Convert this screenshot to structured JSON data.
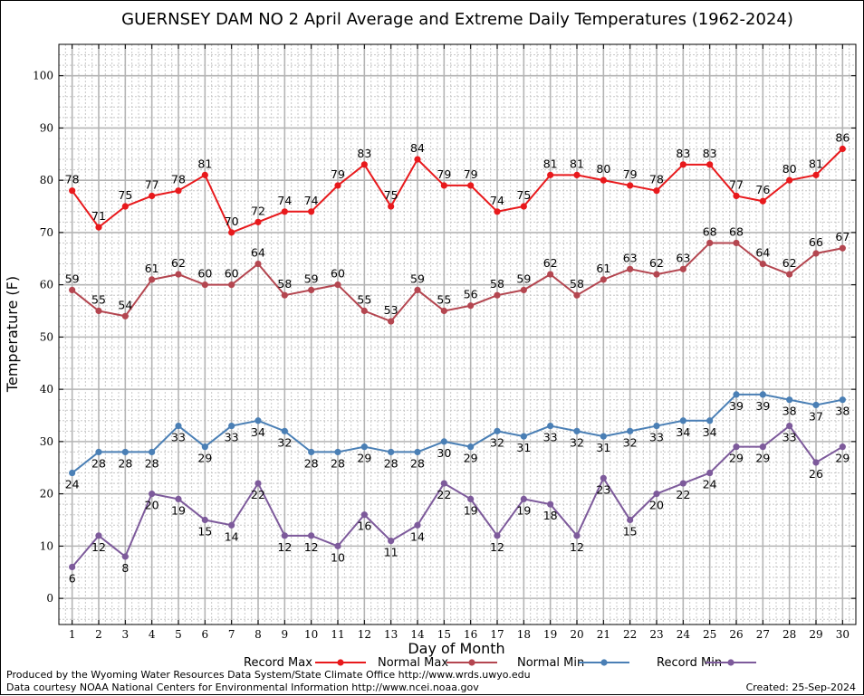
{
  "chart_data": {
    "type": "line",
    "title": "GUERNSEY DAM NO 2 April Average and Extreme Daily Temperatures (1962-2024)",
    "xlabel": "Day of Month",
    "ylabel": "Temperature (F)",
    "x": [
      1,
      2,
      3,
      4,
      5,
      6,
      7,
      8,
      9,
      10,
      11,
      12,
      13,
      14,
      15,
      16,
      17,
      18,
      19,
      20,
      21,
      22,
      23,
      24,
      25,
      26,
      27,
      28,
      29,
      30
    ],
    "xlim": [
      0.5,
      30.5
    ],
    "ylim": [
      -5,
      106
    ],
    "yticks": [
      0,
      10,
      20,
      30,
      40,
      50,
      60,
      70,
      80,
      90,
      100
    ],
    "grid": true,
    "legend_position": "bottom",
    "series": [
      {
        "name": "Record Max",
        "color": "#e8191c",
        "label_position": "above",
        "values": [
          78,
          71,
          75,
          77,
          78,
          81,
          70,
          72,
          74,
          74,
          79,
          83,
          75,
          84,
          79,
          79,
          74,
          75,
          81,
          81,
          80,
          79,
          78,
          83,
          83,
          77,
          76,
          80,
          81,
          86
        ]
      },
      {
        "name": "Normal Max",
        "color": "#b44650",
        "label_position": "above",
        "values": [
          59,
          55,
          54,
          61,
          62,
          60,
          60,
          64,
          58,
          59,
          60,
          55,
          53,
          59,
          55,
          56,
          58,
          59,
          62,
          58,
          61,
          63,
          62,
          63,
          68,
          68,
          64,
          62,
          66,
          67
        ]
      },
      {
        "name": "Normal Min",
        "color": "#4a7fb5",
        "label_position": "below",
        "values": [
          24,
          28,
          28,
          28,
          33,
          29,
          33,
          34,
          32,
          28,
          28,
          29,
          28,
          28,
          30,
          29,
          32,
          31,
          33,
          32,
          31,
          32,
          33,
          34,
          34,
          39,
          39,
          38,
          37,
          38
        ]
      },
      {
        "name": "Record Min",
        "color": "#7d5a9b",
        "label_position": "below",
        "values": [
          6,
          12,
          8,
          20,
          19,
          15,
          14,
          22,
          12,
          12,
          10,
          16,
          11,
          14,
          22,
          19,
          12,
          19,
          18,
          12,
          23,
          15,
          20,
          22,
          24,
          29,
          29,
          33,
          26,
          29
        ]
      }
    ]
  },
  "footer": {
    "credit_line_1": "Produced by the Wyoming Water Resources Data System/State Climate Office http://www.wrds.uwyo.edu",
    "credit_line_2": "Data courtesy NOAA National Centers for Environmental Information http://www.ncei.noaa.gov",
    "created": "Created:  25-Sep-2024"
  }
}
